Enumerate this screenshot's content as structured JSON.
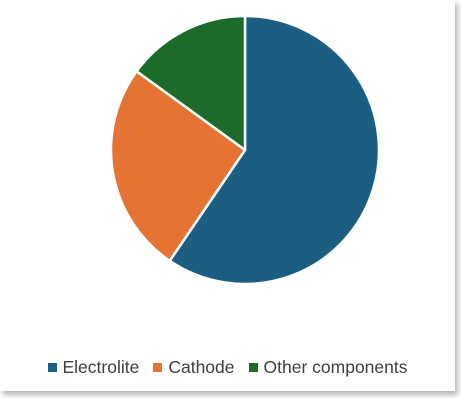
{
  "chart_data": {
    "type": "pie",
    "categories": [
      "Electrolite",
      "Cathode",
      "Other components"
    ],
    "values": [
      59.5,
      25.5,
      15.0
    ],
    "colors": [
      "#1b5e82",
      "#e57333",
      "#1d6b2a"
    ],
    "legend_position": "bottom",
    "start_angle_deg": 0,
    "direction": "clockwise"
  }
}
